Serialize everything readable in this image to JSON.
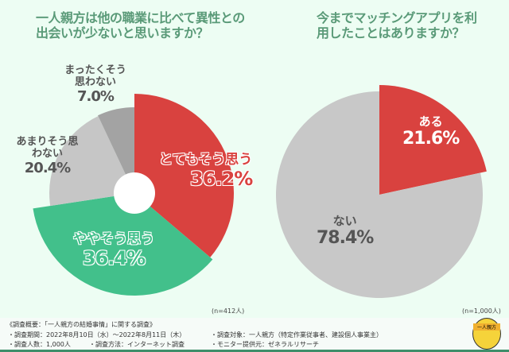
{
  "chart_data": [
    {
      "type": "pie",
      "title": "一人親方は他の職業に比べて異性との出会いが少ないと思いますか？",
      "n_label": "(n=412人)",
      "slices": [
        {
          "label": "とてもそう思う",
          "value": 36.2,
          "value_label": "36.2%",
          "color": "#d9423f"
        },
        {
          "label": "ややそう思う",
          "value": 36.4,
          "value_label": "36.4%",
          "color": "#42c08b"
        },
        {
          "label": "あまりそう思わない",
          "value": 20.4,
          "value_label": "20.4%",
          "color": "#c6c6c6"
        },
        {
          "label": "まったくそう思わない",
          "value": 7.0,
          "value_label": "7.0%",
          "color": "#a3a3a3"
        }
      ]
    },
    {
      "type": "pie",
      "title": "今までマッチングアプリを利用したことはありますか？",
      "n_label": "(n=1,000人)",
      "slices": [
        {
          "label": "ある",
          "value": 21.6,
          "value_label": "21.6%",
          "color": "#d9423f"
        },
        {
          "label": "ない",
          "value": 78.4,
          "value_label": "78.4%",
          "color": "#c8c8c8"
        }
      ]
    }
  ],
  "footer": {
    "heading": "《調査概要：「一人親方の結婚事情」に関する調査》",
    "period": "・調査期間：2022年8月10日（水）～2022年8月11日（木）",
    "count": "・調査人数：1,000人",
    "method": "・調査方法：インターネット調査",
    "target": "・調査対象：一人親方（特定作業従事者、建設個人事業主）",
    "provider": "・モニター提供元：ゼネラルリサーチ",
    "logo_text": "一人親方"
  }
}
